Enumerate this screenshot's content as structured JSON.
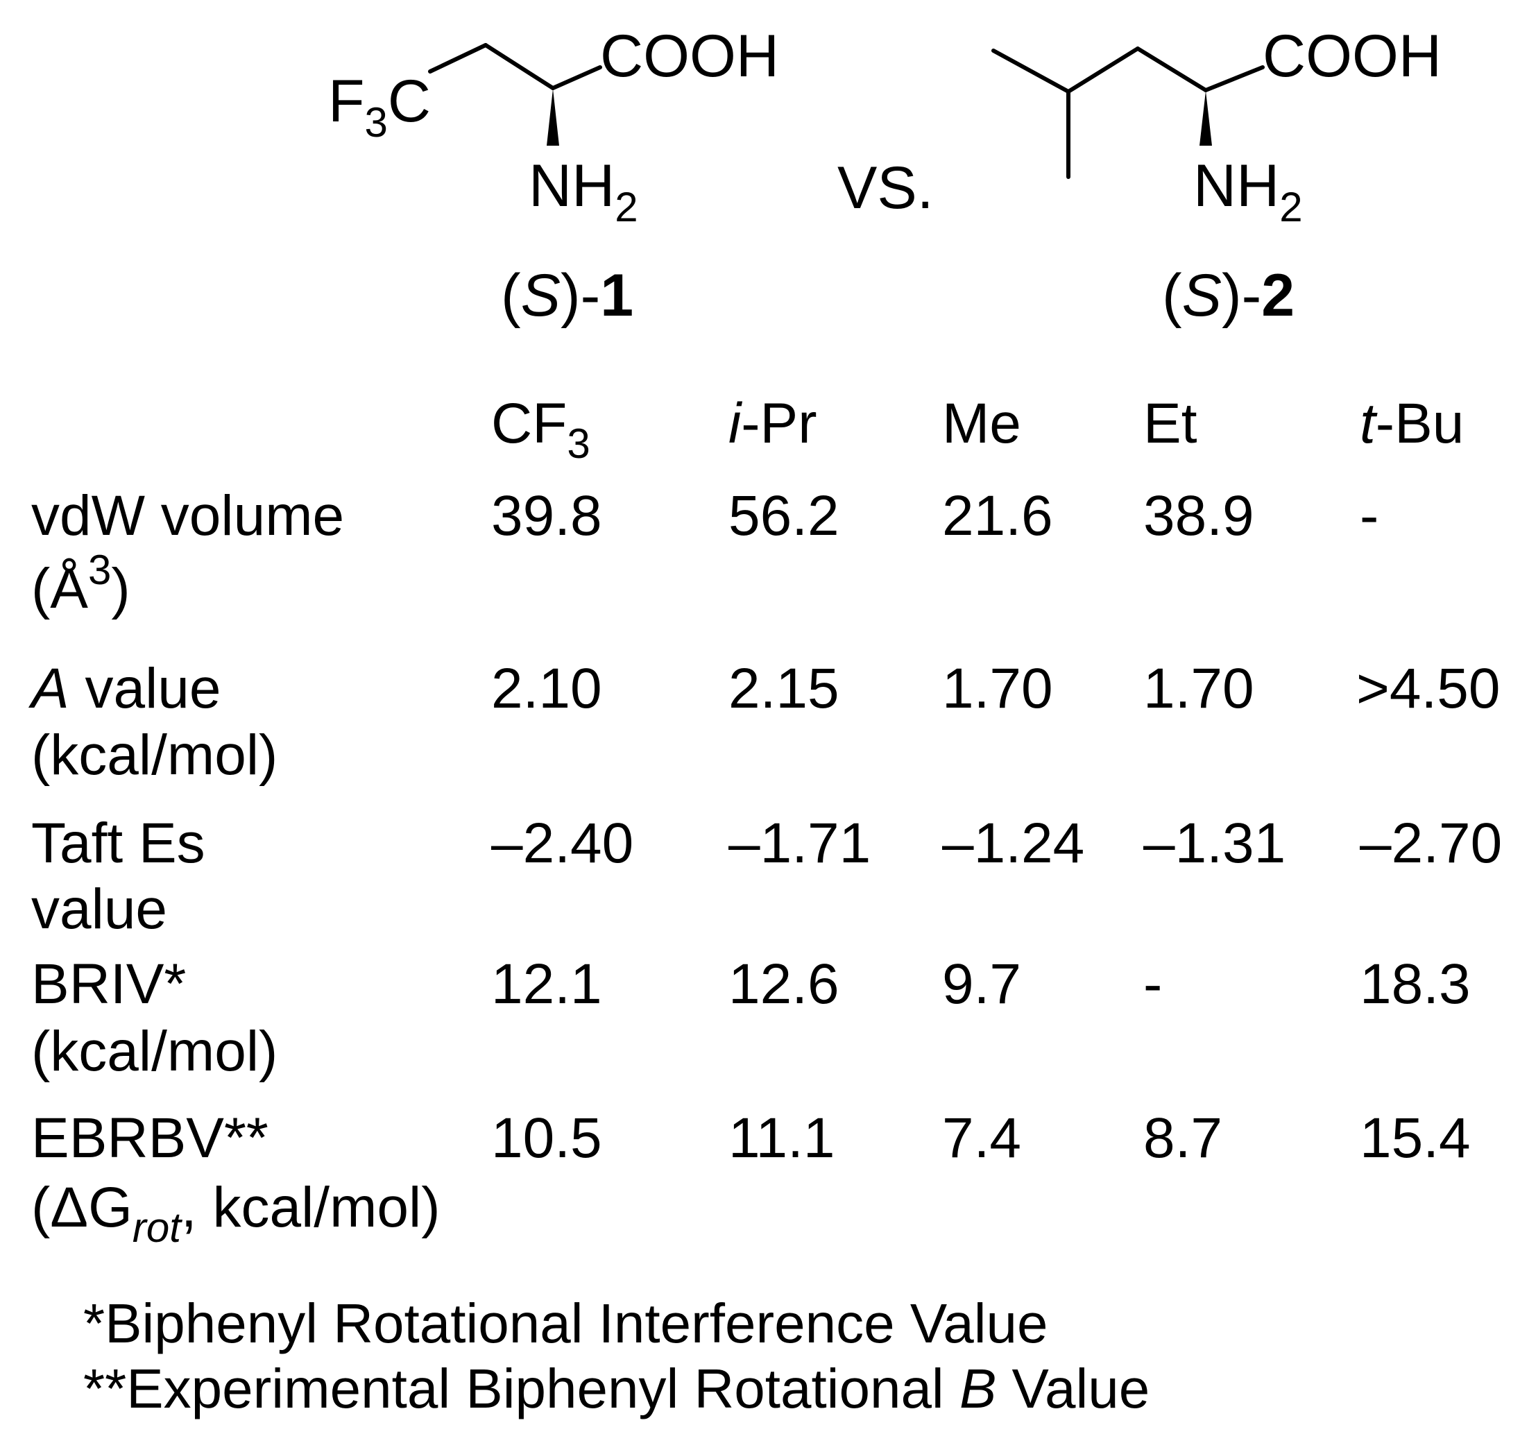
{
  "molecule1": {
    "cf3_prefix": "F",
    "cf3_sub": "3",
    "cf3_suffix": "C",
    "acid": "COOH",
    "amine": "NH",
    "amine_sub": "2",
    "label_open": "(",
    "label_config": "S",
    "label_close": ")-",
    "label_num": "1"
  },
  "versus": "VS.",
  "molecule2": {
    "acid": "COOH",
    "amine": "NH",
    "amine_sub": "2",
    "label_open": "(",
    "label_config": "S",
    "label_close": ")-",
    "label_num": "2"
  },
  "table": {
    "columns": [
      {
        "main": "CF",
        "sub": "3"
      },
      {
        "italic": "i",
        "main": "-Pr"
      },
      {
        "main": "Me"
      },
      {
        "main": "Et"
      },
      {
        "italic": "t",
        "main": "-Bu"
      }
    ],
    "rows": [
      {
        "line1": "vdW volume",
        "line2_prefix": "(Å",
        "line2_sup": "3",
        "line2_suffix": ")",
        "values": [
          "39.8",
          "56.2",
          "21.6",
          "38.9",
          "-"
        ]
      },
      {
        "line1_italic": "A",
        "line1": " value",
        "line2": "(kcal/mol)",
        "values": [
          "2.10",
          "2.15",
          "1.70",
          "1.70",
          ">4.50"
        ]
      },
      {
        "line1": "Taft Es",
        "line2": "value",
        "values": [
          "–2.40",
          "–1.71",
          "–1.24",
          "–1.31",
          "–2.70"
        ]
      },
      {
        "line1": "BRIV*",
        "line2": "(kcal/mol)",
        "values": [
          "12.1",
          "12.6",
          "9.7",
          "-",
          "18.3"
        ]
      },
      {
        "line1": "EBRBV**",
        "line2_prefix": "(ΔG",
        "line2_sub": "rot",
        "line2_suffix": ", kcal/mol)",
        "values": [
          "10.5",
          "11.1",
          "7.4",
          "8.7",
          "15.4"
        ]
      }
    ]
  },
  "footnotes": {
    "note1": "*Biphenyl Rotational Interference Value",
    "note2_prefix": "**Experimental Biphenyl Rotational ",
    "note2_italic": "B",
    "note2_suffix": " Value"
  }
}
